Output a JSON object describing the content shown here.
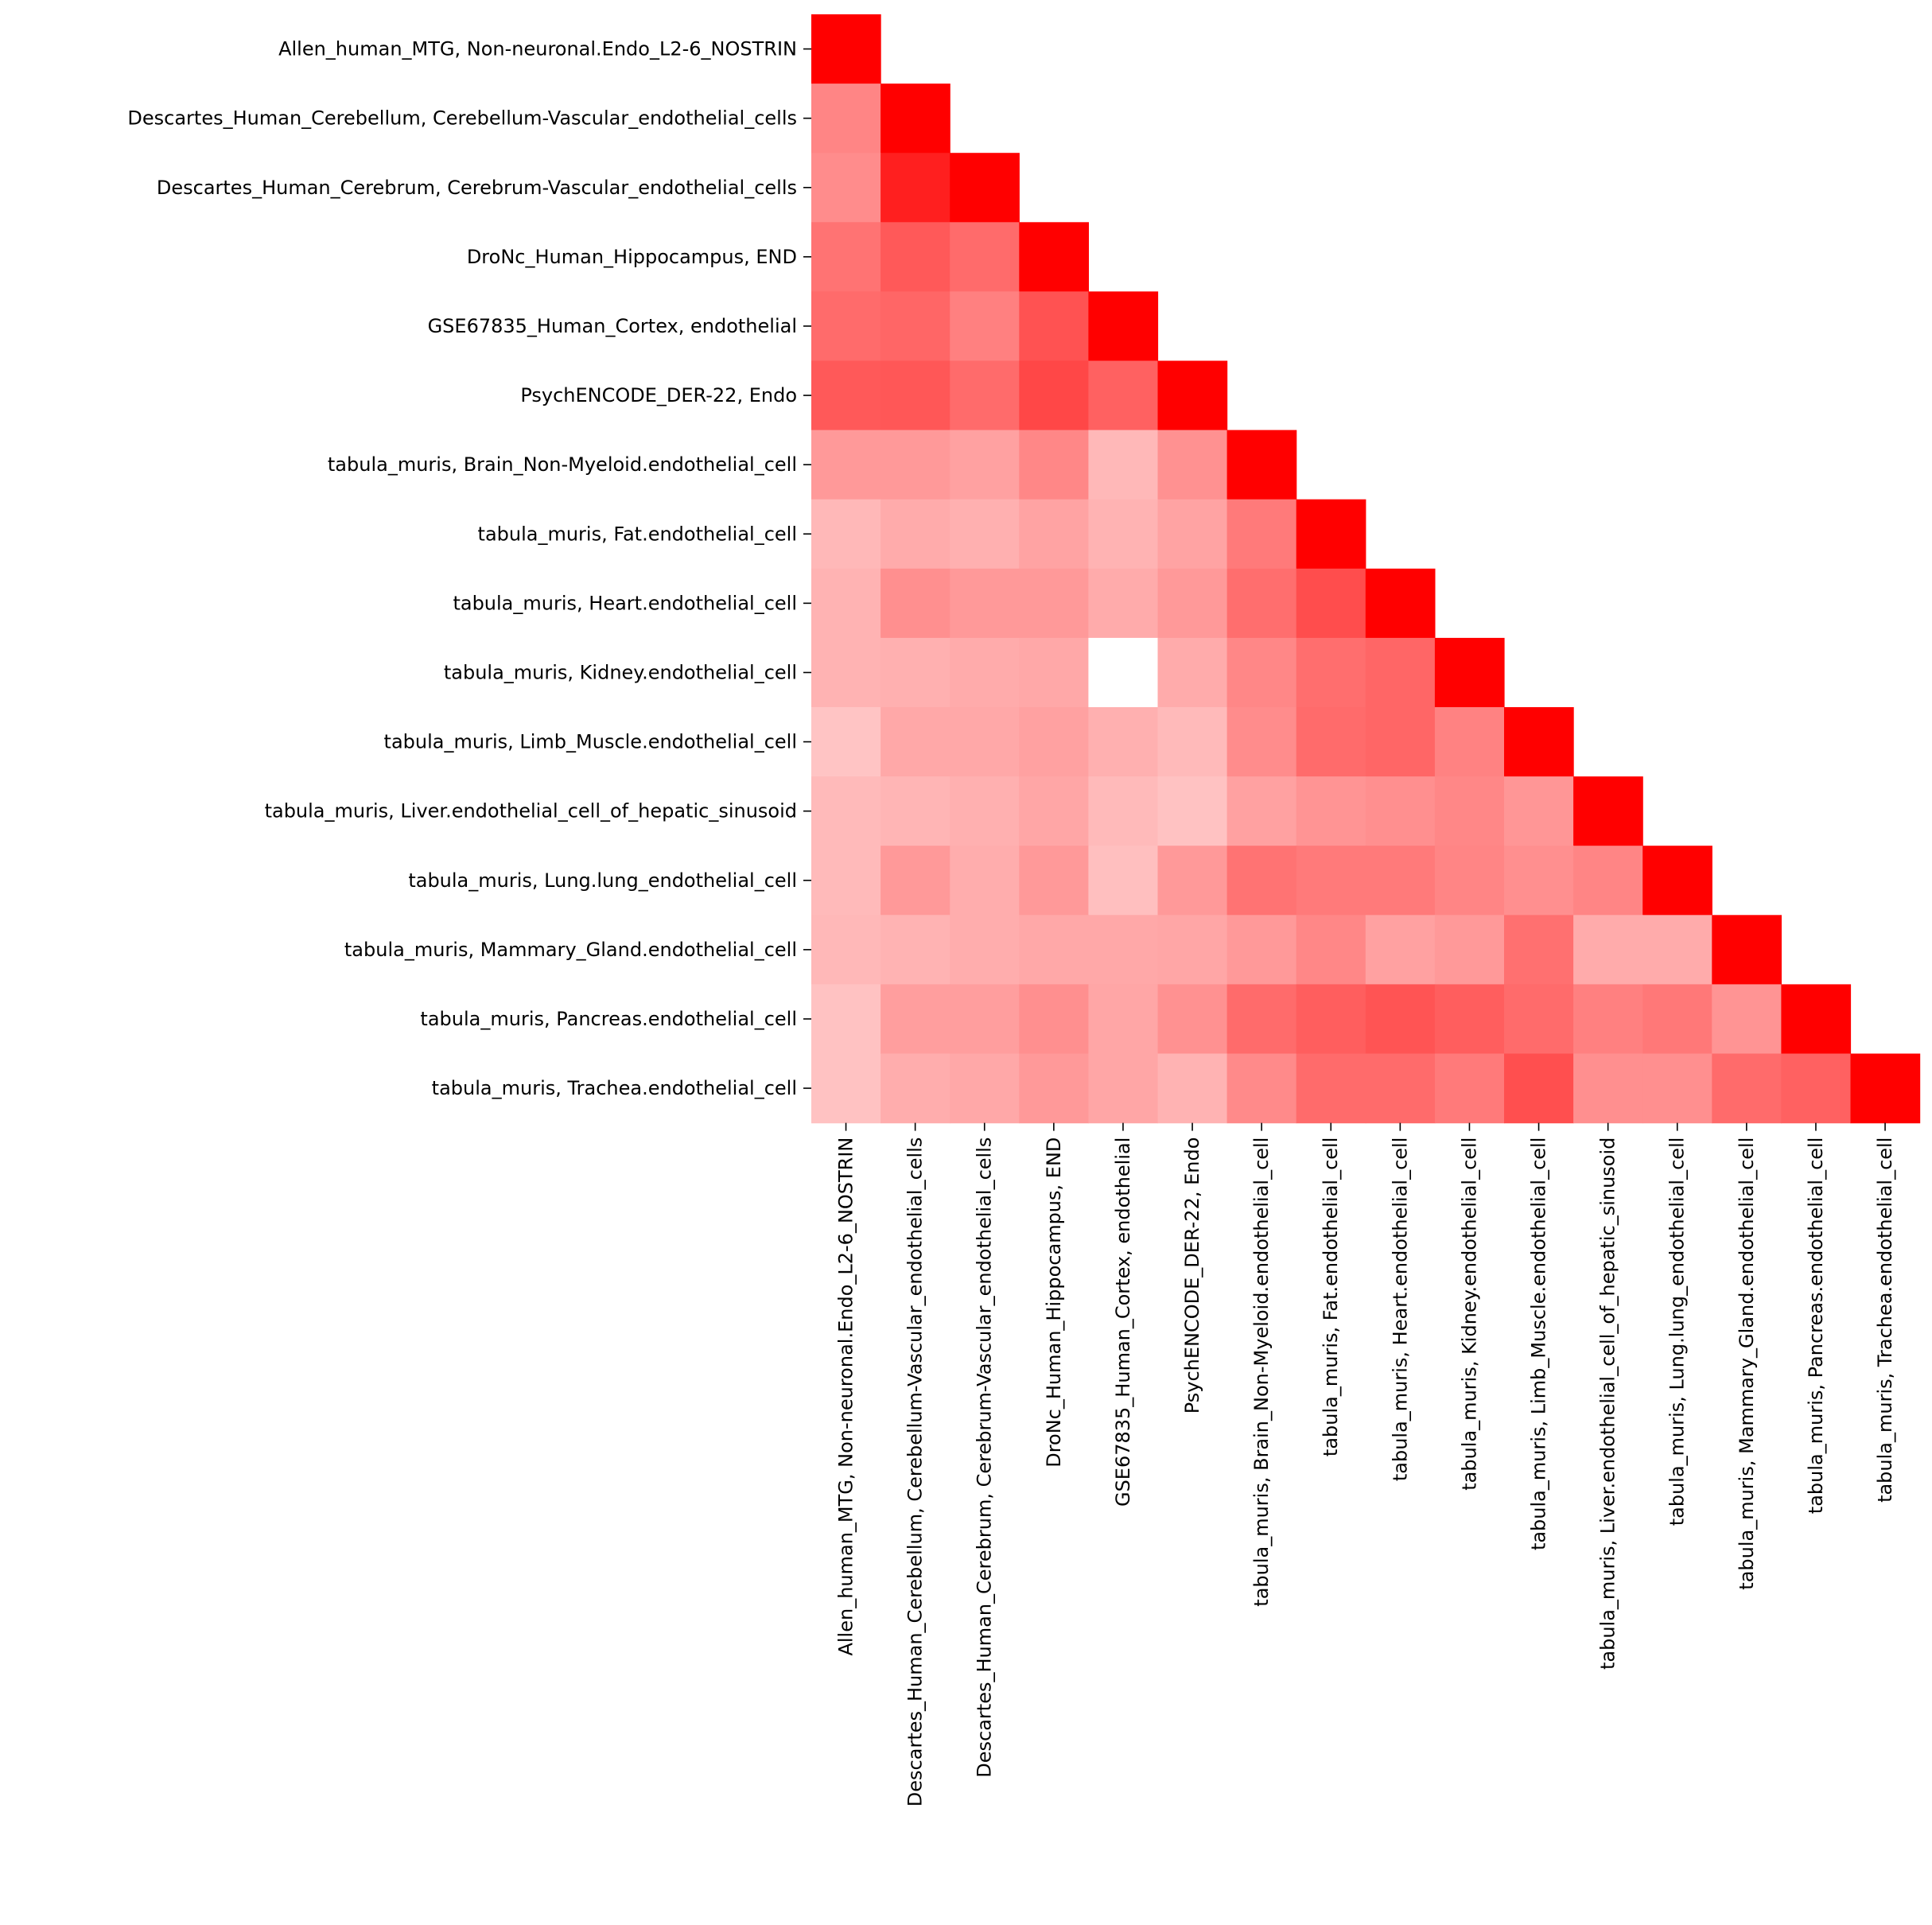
{
  "chart_data": {
    "type": "heatmap",
    "layout": "lower-triangle",
    "labels": [
      "Allen_human_MTG, Non-neuronal.Endo_L2-6_NOSTRIN",
      "Descartes_Human_Cerebellum, Cerebellum-Vascular_endothelial_cells",
      "Descartes_Human_Cerebrum, Cerebrum-Vascular_endothelial_cells",
      "DroNc_Human_Hippocampus, END",
      "GSE67835_Human_Cortex, endothelial",
      "PsychENCODE_DER-22, Endo",
      "tabula_muris, Brain_Non-Myeloid.endothelial_cell",
      "tabula_muris, Fat.endothelial_cell",
      "tabula_muris, Heart.endothelial_cell",
      "tabula_muris, Kidney.endothelial_cell",
      "tabula_muris, Limb_Muscle.endothelial_cell",
      "tabula_muris, Liver.endothelial_cell_of_hepatic_sinusoid",
      "tabula_muris, Lung.lung_endothelial_cell",
      "tabula_muris, Mammary_Gland.endothelial_cell",
      "tabula_muris, Pancreas.endothelial_cell",
      "tabula_muris, Trachea.endothelial_cell"
    ],
    "value_range": [
      0,
      1
    ],
    "colormap": {
      "low": "#ffffff",
      "high": "#ff0000"
    },
    "values": [
      [
        1.0
      ],
      [
        0.48,
        1.0
      ],
      [
        0.45,
        0.88,
        1.0
      ],
      [
        0.55,
        0.65,
        0.58,
        1.0
      ],
      [
        0.58,
        0.6,
        0.5,
        0.68,
        1.0
      ],
      [
        0.65,
        0.66,
        0.58,
        0.72,
        0.62,
        1.0
      ],
      [
        0.4,
        0.4,
        0.37,
        0.47,
        0.28,
        0.43,
        1.0
      ],
      [
        0.28,
        0.33,
        0.31,
        0.36,
        0.3,
        0.36,
        0.52,
        1.0
      ],
      [
        0.3,
        0.44,
        0.4,
        0.4,
        0.33,
        0.4,
        0.57,
        0.7,
        1.0
      ],
      [
        0.3,
        0.31,
        0.33,
        0.34,
        0.0,
        0.33,
        0.47,
        0.57,
        0.6,
        1.0
      ],
      [
        0.23,
        0.34,
        0.34,
        0.37,
        0.31,
        0.27,
        0.45,
        0.58,
        0.6,
        0.49,
        1.0
      ],
      [
        0.27,
        0.29,
        0.31,
        0.35,
        0.27,
        0.24,
        0.37,
        0.42,
        0.44,
        0.47,
        0.41,
        1.0
      ],
      [
        0.27,
        0.4,
        0.32,
        0.4,
        0.25,
        0.4,
        0.55,
        0.52,
        0.52,
        0.48,
        0.44,
        0.48,
        1.0
      ],
      [
        0.28,
        0.3,
        0.32,
        0.34,
        0.34,
        0.35,
        0.4,
        0.47,
        0.37,
        0.4,
        0.56,
        0.33,
        0.33,
        1.0
      ],
      [
        0.24,
        0.38,
        0.38,
        0.44,
        0.35,
        0.43,
        0.58,
        0.63,
        0.67,
        0.63,
        0.58,
        0.5,
        0.53,
        0.42,
        1.0
      ],
      [
        0.24,
        0.32,
        0.34,
        0.4,
        0.35,
        0.3,
        0.46,
        0.58,
        0.58,
        0.52,
        0.69,
        0.44,
        0.44,
        0.58,
        0.62,
        1.0
      ]
    ]
  }
}
